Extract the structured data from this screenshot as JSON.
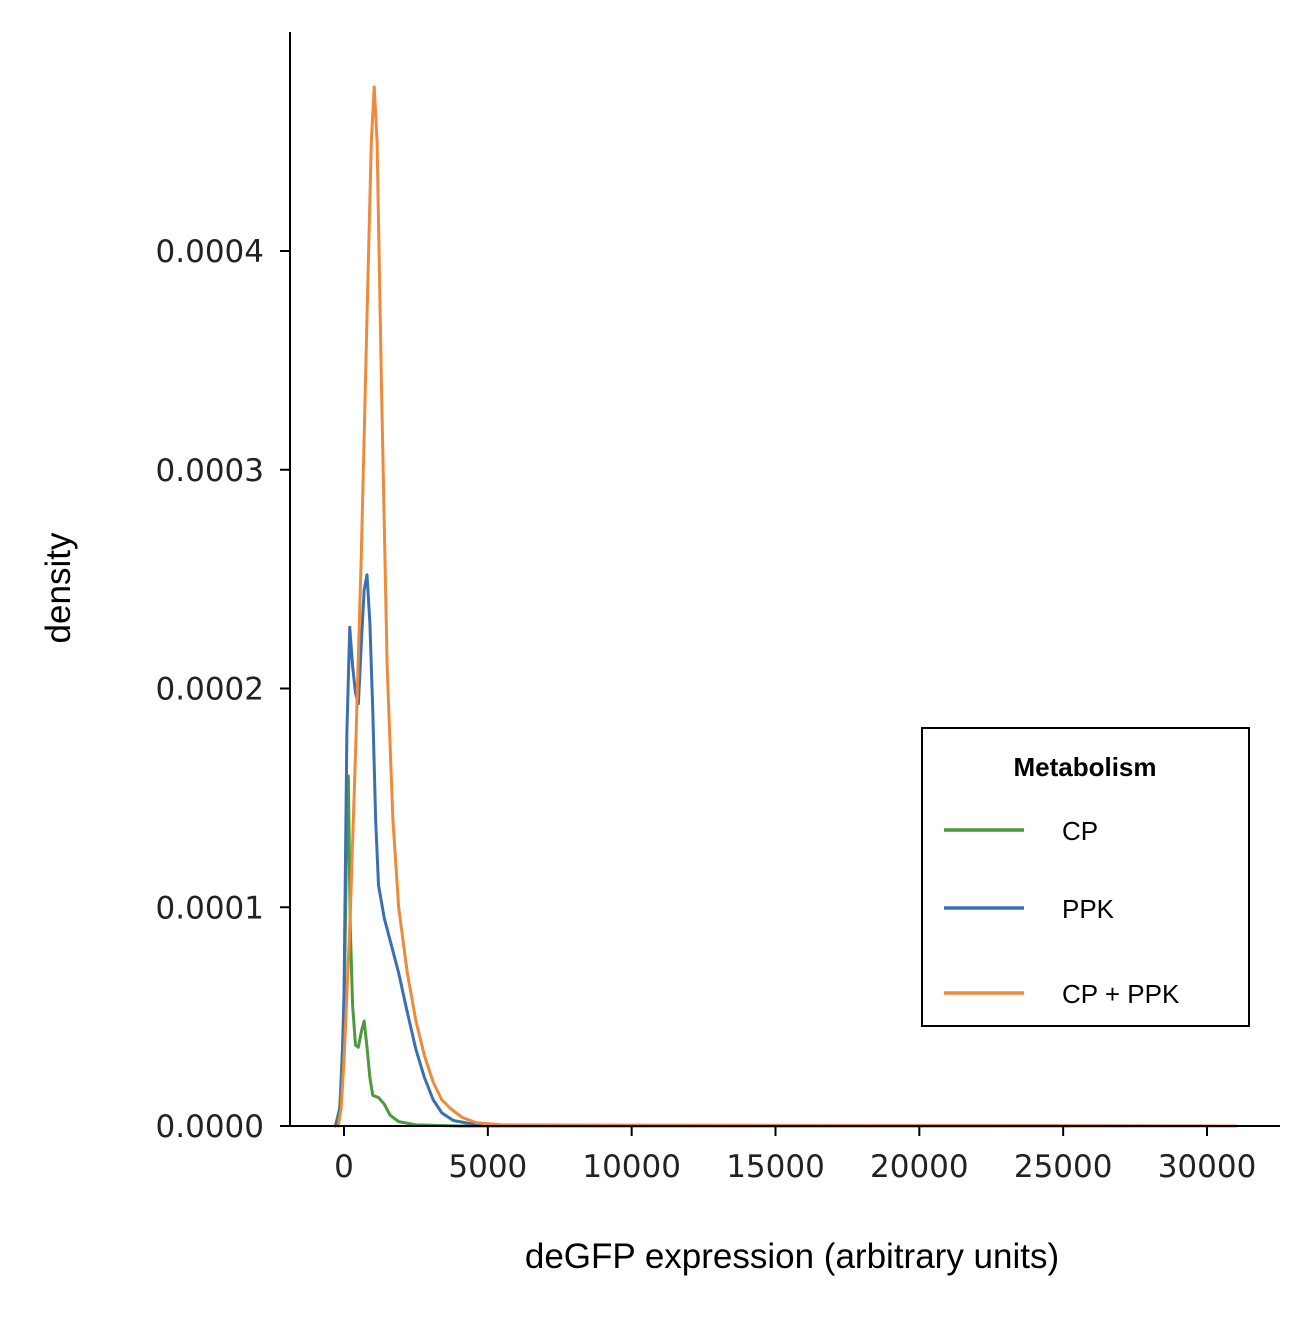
{
  "chart_data": {
    "type": "line",
    "title": "",
    "xlabel": "deGFP expression (arbitrary units)",
    "ylabel": "density",
    "xlim": [
      -2000,
      32000
    ],
    "ylim": [
      0,
      0.0005
    ],
    "x_ticks": [
      0,
      5000,
      10000,
      15000,
      20000,
      25000,
      30000
    ],
    "x_tick_labels": [
      "0",
      "5000",
      "10000",
      "15000",
      "20000",
      "25000",
      "30000"
    ],
    "y_ticks": [
      0,
      0.0001,
      0.0002,
      0.0003,
      0.0004
    ],
    "y_tick_labels": [
      "0.0000",
      "0.0001",
      "0.0002",
      "0.0003",
      "0.0004"
    ],
    "grid": false,
    "legend": {
      "title": "Metabolism",
      "position": "right"
    },
    "series": [
      {
        "name": "CP",
        "color": "#4c9a3c",
        "points": [
          [
            -300,
            0
          ],
          [
            -150,
            8e-06
          ],
          [
            0,
            5e-05
          ],
          [
            80,
            0.00012
          ],
          [
            150,
            0.00016
          ],
          [
            220,
            9e-05
          ],
          [
            300,
            5.5e-05
          ],
          [
            400,
            3.7e-05
          ],
          [
            500,
            3.6e-05
          ],
          [
            600,
            4.3e-05
          ],
          [
            700,
            4.8e-05
          ],
          [
            800,
            3.6e-05
          ],
          [
            900,
            2.2e-05
          ],
          [
            1000,
            1.4e-05
          ],
          [
            1200,
            1.3e-05
          ],
          [
            1400,
            1e-05
          ],
          [
            1600,
            5e-06
          ],
          [
            1900,
            2e-06
          ],
          [
            2500,
            5e-07
          ],
          [
            4000,
            0
          ],
          [
            31000,
            0
          ]
        ]
      },
      {
        "name": "PPK",
        "color": "#3a70b0",
        "points": [
          [
            -300,
            0
          ],
          [
            -200,
            4e-06
          ],
          [
            -100,
            1.2e-05
          ],
          [
            0,
            6e-05
          ],
          [
            100,
            0.00018
          ],
          [
            200,
            0.000228
          ],
          [
            300,
            0.00021
          ],
          [
            400,
            0.000198
          ],
          [
            500,
            0.000193
          ],
          [
            600,
            0.00022
          ],
          [
            700,
            0.000245
          ],
          [
            800,
            0.000252
          ],
          [
            900,
            0.00023
          ],
          [
            1000,
            0.00019
          ],
          [
            1100,
            0.00014
          ],
          [
            1200,
            0.00011
          ],
          [
            1400,
            9.5e-05
          ],
          [
            1600,
            8.5e-05
          ],
          [
            1900,
            7e-05
          ],
          [
            2200,
            5.2e-05
          ],
          [
            2500,
            3.5e-05
          ],
          [
            2800,
            2.2e-05
          ],
          [
            3100,
            1.2e-05
          ],
          [
            3400,
            6e-06
          ],
          [
            3800,
            2.5e-06
          ],
          [
            4500,
            8e-07
          ],
          [
            5500,
            3e-07
          ],
          [
            31000,
            0
          ]
        ]
      },
      {
        "name": "CP + PPK",
        "color": "#ee8a3a",
        "points": [
          [
            -200,
            0
          ],
          [
            -100,
            8e-06
          ],
          [
            0,
            3e-05
          ],
          [
            200,
            9e-05
          ],
          [
            400,
            0.00017
          ],
          [
            600,
            0.00026
          ],
          [
            800,
            0.00037
          ],
          [
            950,
            0.00045
          ],
          [
            1050,
            0.000475
          ],
          [
            1150,
            0.00045
          ],
          [
            1300,
            0.00034
          ],
          [
            1500,
            0.00021
          ],
          [
            1700,
            0.00014
          ],
          [
            1900,
            0.0001
          ],
          [
            2200,
            7e-05
          ],
          [
            2500,
            4.8e-05
          ],
          [
            2800,
            3.2e-05
          ],
          [
            3100,
            2e-05
          ],
          [
            3400,
            1.2e-05
          ],
          [
            3700,
            8e-06
          ],
          [
            4100,
            4e-06
          ],
          [
            4600,
            1.5e-06
          ],
          [
            5500,
            5e-07
          ],
          [
            31000,
            0
          ]
        ]
      }
    ]
  }
}
